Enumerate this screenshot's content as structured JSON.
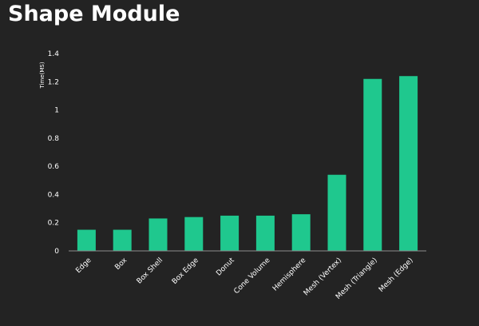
{
  "header": {
    "title": "Shape Module"
  },
  "colors": {
    "background": "#232323",
    "bar": "#1fc88e",
    "axis": "#8c8c8c",
    "text": "#ffffff"
  },
  "chart_data": {
    "type": "bar",
    "title": "Shape Module",
    "xlabel": "",
    "ylabel": "Time(MS)",
    "ylim": [
      0,
      1.4
    ],
    "yticks": [
      0,
      0.2,
      0.4,
      0.6,
      0.8,
      1,
      1.2,
      1.4
    ],
    "ytick_labels": [
      "0",
      "0.2",
      "0.4",
      "0.6",
      "0.8",
      "1",
      "1.2",
      "1.4"
    ],
    "grid": false,
    "legend": "none",
    "categories": [
      "Edge",
      "Box",
      "Box Shell",
      "Box Edge",
      "Donut",
      "Cone Volume",
      "Hemisphere",
      "Mesh (Vertex)",
      "Mesh (Triangle)",
      "Mesh (Edge)"
    ],
    "values": [
      0.15,
      0.15,
      0.23,
      0.24,
      0.25,
      0.25,
      0.26,
      0.54,
      1.22,
      1.24
    ]
  }
}
